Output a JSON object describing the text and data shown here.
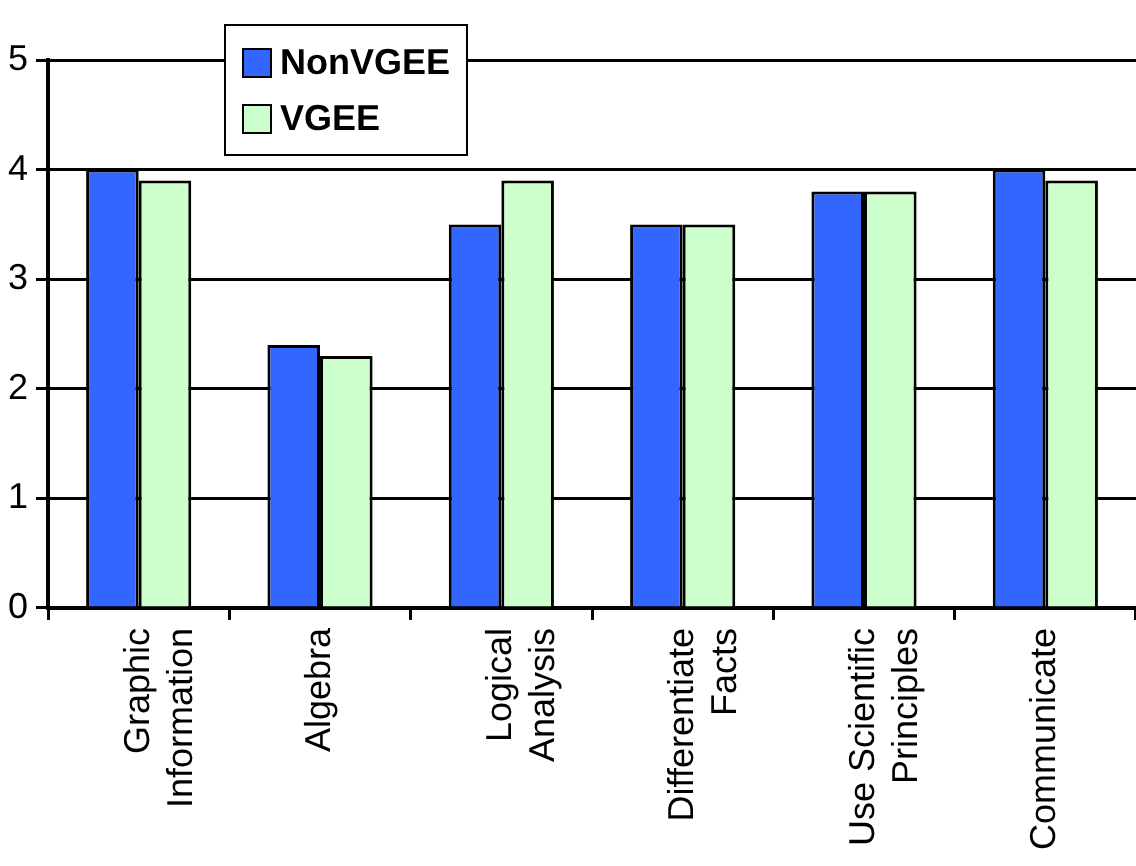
{
  "chart_data": {
    "type": "bar",
    "categories": [
      "Graphic Information",
      "Algebra",
      "Logical Analysis",
      "Differentiate Facts",
      "Use Scientific Principles",
      "Communicate"
    ],
    "series": [
      {
        "name": "NonVGEE",
        "color": "#3366ff",
        "values": [
          4.0,
          2.4,
          3.5,
          3.5,
          3.8,
          4.0
        ]
      },
      {
        "name": "VGEE",
        "color": "#ccffcc",
        "values": [
          3.9,
          2.3,
          3.9,
          3.5,
          3.8,
          3.9
        ]
      }
    ],
    "ylim": [
      0,
      5
    ],
    "yticks": [
      0,
      1,
      2,
      3,
      4,
      5
    ],
    "grid": "y",
    "legend": "top left"
  }
}
